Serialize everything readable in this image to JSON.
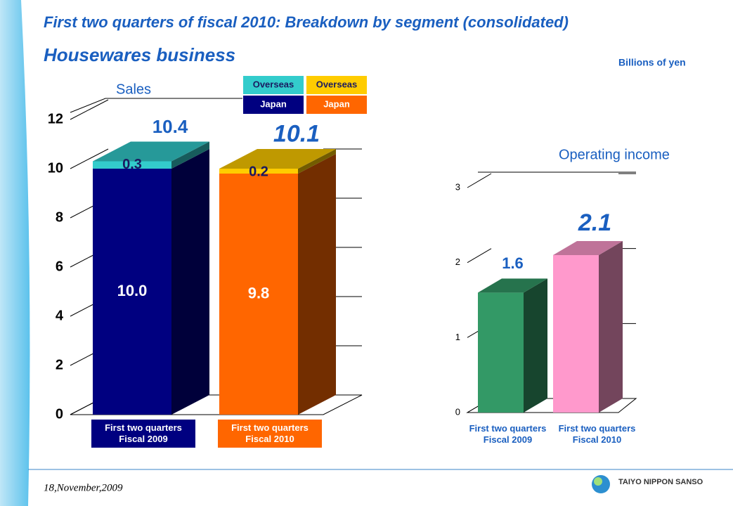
{
  "title": "First two quarters of fiscal 2010: Breakdown by segment (consolidated)",
  "subtitle": "Housewares business",
  "unit": "Billions of yen",
  "date": "18,November,2009",
  "logo": "TAIYO NIPPON SANSO",
  "chart_data": [
    {
      "type": "stacked_bar",
      "title": "Sales",
      "categories": [
        "First two quarters\nFiscal 2009",
        "First two quarters\nFiscal 2010"
      ],
      "series": [
        {
          "name": "Japan",
          "colors": [
            "#000080",
            "#ff6600"
          ],
          "values": [
            10.0,
            9.8
          ],
          "value_labels": [
            "10.0",
            "9.8"
          ]
        },
        {
          "name": "Overseas",
          "colors": [
            "#33cccc",
            "#ffcc00"
          ],
          "values": [
            0.3,
            0.2
          ]
        }
      ],
      "totals": [
        10.4,
        10.1
      ],
      "ylim": [
        0,
        12
      ],
      "yticks": [
        0,
        2,
        4,
        6,
        8,
        10,
        12
      ],
      "grid": true
    },
    {
      "type": "bar",
      "title": "Operating income",
      "categories": [
        "First two quarters\nFiscal 2009",
        "First two quarters\nFiscal 2010"
      ],
      "values": [
        1.6,
        2.1
      ],
      "colors": [
        "#339966",
        "#ff99cc"
      ],
      "ylim": [
        0,
        3
      ],
      "yticks": [
        0,
        1,
        2,
        3
      ],
      "grid": true
    }
  ]
}
